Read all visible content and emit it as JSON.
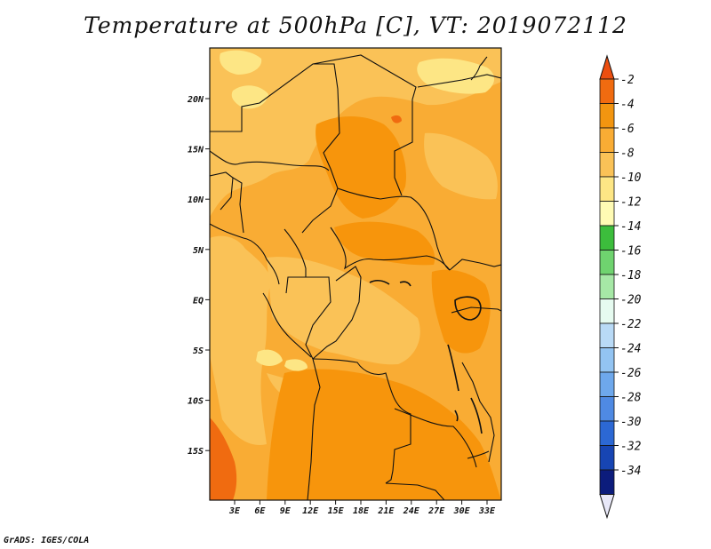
{
  "title": "Temperature at 500hPa [C], VT: 2019072112",
  "credit": "GrADS: IGES/COLA",
  "map": {
    "lat_labels": [
      "20N",
      "15N",
      "10N",
      "5N",
      "EQ",
      "5S",
      "10S",
      "15S"
    ],
    "lon_labels": [
      "3E",
      "6E",
      "9E",
      "12E",
      "15E",
      "18E",
      "21E",
      "24E",
      "27E",
      "30E",
      "33E"
    ],
    "fill_colors": {
      "background": "#f9ac34",
      "lighter": "#fac257",
      "lightest": "#fde685",
      "darker": "#f7950c",
      "warmest": "#f06b10"
    }
  },
  "colorbar": {
    "labels": [
      "-2",
      "-4",
      "-6",
      "-8",
      "-10",
      "-12",
      "-14",
      "-16",
      "-18",
      "-20",
      "-22",
      "-24",
      "-26",
      "-28",
      "-30",
      "-32",
      "-34"
    ],
    "colors": [
      "#f06b10",
      "#f29510",
      "#f9ac34",
      "#fac257",
      "#fde685",
      "#fffbb4",
      "#3cbd3c",
      "#6fd36f",
      "#a6e8a6",
      "#e6fbf0",
      "#b9daf6",
      "#93c4f2",
      "#6ea8ec",
      "#4f8ae3",
      "#2c68d4",
      "#1745b3",
      "#0c1c7c"
    ],
    "top_triangle": "#ec4e10",
    "bottom_triangle": "#e8e8f8"
  }
}
